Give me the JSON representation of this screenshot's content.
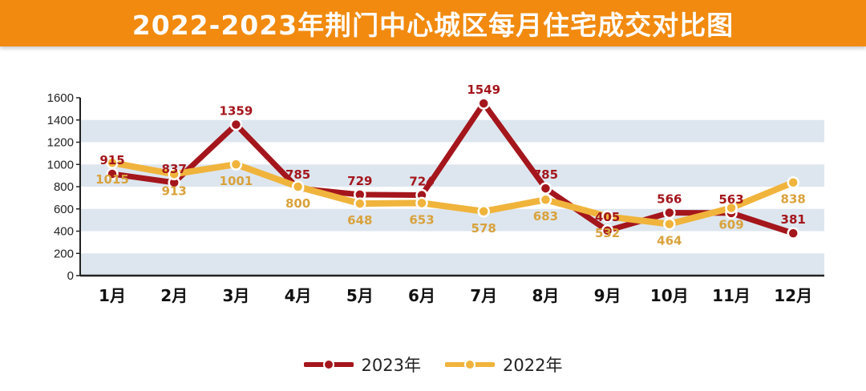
{
  "title": "2022-2023年荆门中心城区每月住宅成交对比图",
  "chart_data": {
    "type": "line",
    "categories": [
      "1月",
      "2月",
      "3月",
      "4月",
      "5月",
      "6月",
      "7月",
      "8月",
      "9月",
      "10月",
      "11月",
      "12月"
    ],
    "series": [
      {
        "name": "2023年",
        "color": "#a4161c",
        "values": [
          915,
          837,
          1359,
          785,
          729,
          724,
          1549,
          785,
          405,
          566,
          563,
          381
        ]
      },
      {
        "name": "2022年",
        "color": "#f0b43c",
        "values": [
          1015,
          913,
          1001,
          800,
          648,
          653,
          578,
          683,
          532,
          464,
          609,
          838
        ]
      }
    ],
    "ylim": [
      0,
      1600
    ],
    "yticks": [
      0,
      200,
      400,
      600,
      800,
      1000,
      1200,
      1400,
      1600
    ],
    "grid": "alternating horizontal bands",
    "legend": "bottom-center"
  }
}
